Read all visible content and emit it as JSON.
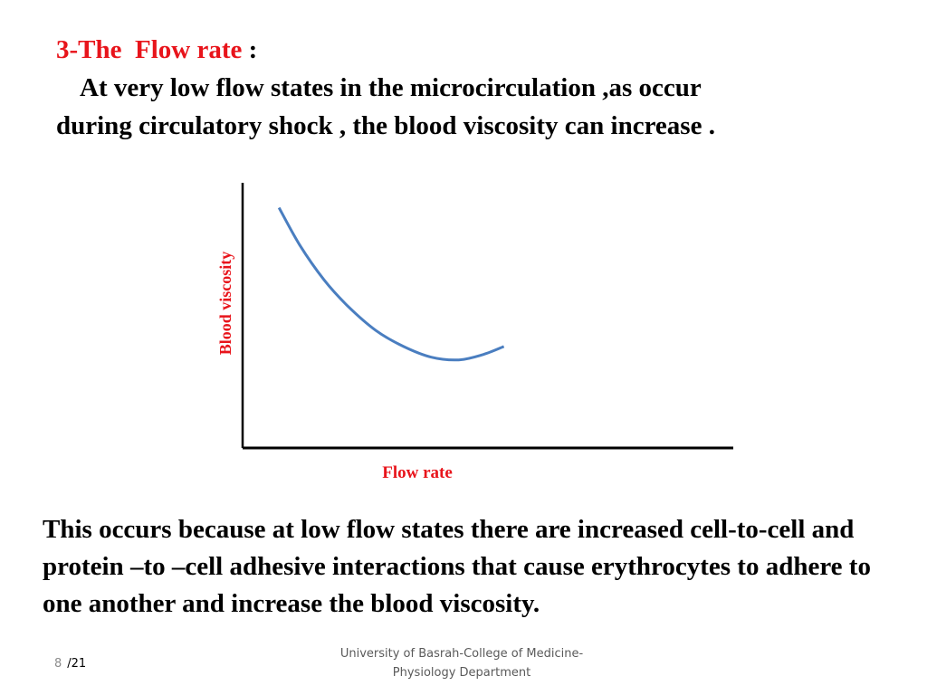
{
  "slide": {
    "heading_red_part": "3-The  Flow rate",
    "heading_colon": " :",
    "intro_line1": "At very low flow states in the microcirculation ,as occur",
    "intro_line2": "during circulatory shock , the blood viscosity can increase .",
    "explanation": "This occurs because at low flow states there are increased cell-to-cell and protein –to –cell adhesive interactions that cause erythrocytes to adhere to one another and increase the blood viscosity."
  },
  "chart_data": {
    "type": "line",
    "xlabel": "Flow rate",
    "ylabel": "Blood viscosity",
    "x_ticks": false,
    "y_ticks": false,
    "grid": false,
    "series": [
      {
        "color": "#4a7ec0",
        "points": [
          [
            1.0,
            9.0
          ],
          [
            1.6,
            7.6
          ],
          [
            2.3,
            6.3
          ],
          [
            3.0,
            5.3
          ],
          [
            3.8,
            4.4
          ],
          [
            4.6,
            3.8
          ],
          [
            5.4,
            3.4
          ],
          [
            6.2,
            3.3
          ],
          [
            6.9,
            3.5
          ],
          [
            7.5,
            3.8
          ]
        ]
      }
    ],
    "xlim": [
      0,
      14
    ],
    "ylim": [
      0,
      10
    ],
    "axis_color": "#000000",
    "label_color": "#e8141b"
  },
  "footer": {
    "line1": "University of Basrah-College of Medicine-",
    "line2": "Physiology Department"
  },
  "page": {
    "current": "8",
    "total": "/21"
  }
}
